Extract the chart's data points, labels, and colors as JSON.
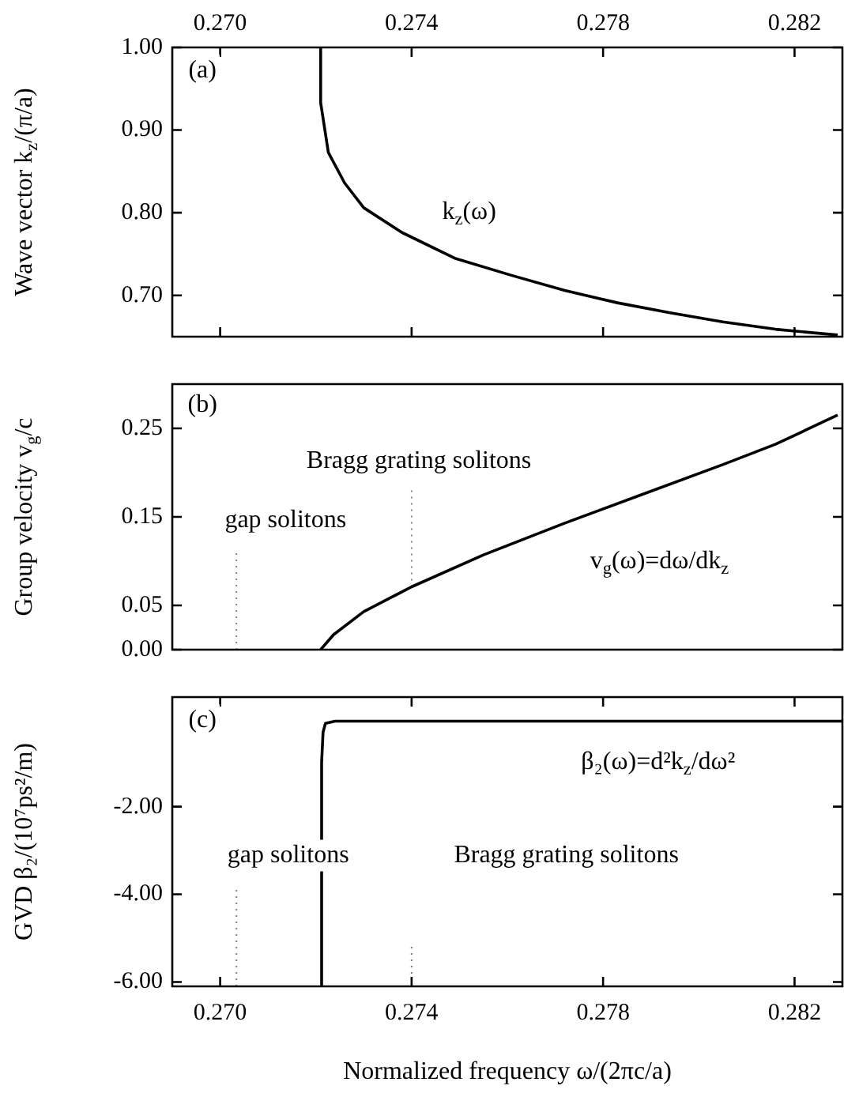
{
  "chart_data": [
    {
      "type": "line",
      "ylabel": "Wave vector k$_{z}$/(π/a)",
      "xlim": [
        0.269,
        0.283
      ],
      "x2lim": [
        0.269,
        0.283
      ],
      "x2ticks": [
        {
          "value": 0.27,
          "label": "0.270"
        },
        {
          "value": 0.274,
          "label": "0.274"
        },
        {
          "value": 0.278,
          "label": "0.278"
        },
        {
          "value": 0.282,
          "label": "0.282"
        }
      ],
      "ylim": [
        0.65,
        1.0
      ],
      "yticks": [
        {
          "value": 0.7,
          "label": "0.70"
        },
        {
          "value": 0.8,
          "label": "0.80"
        },
        {
          "value": 0.9,
          "label": "0.90"
        },
        {
          "value": 1.0,
          "label": "1.00"
        }
      ],
      "tick_labels": "y",
      "grid": false,
      "legend": false,
      "marker": "none",
      "annotations": [
        "(a)",
        "k$_{z}$(ω)"
      ],
      "series": [
        {
          "color": "#000000",
          "line_style": "solid",
          "x": [
            0.2721,
            0.2721,
            0.27226,
            0.2726,
            0.273,
            0.2738,
            0.2749,
            0.2761,
            0.2772,
            0.2783,
            0.2794,
            0.2805,
            0.2816,
            0.2829
          ],
          "values": [
            1.0,
            0.933,
            0.873,
            0.836,
            0.806,
            0.776,
            0.745,
            0.724,
            0.706,
            0.691,
            0.679,
            0.668,
            0.659,
            0.652
          ]
        }
      ]
    },
    {
      "type": "line",
      "ylabel": "Group velocity v$_{g}$/c",
      "xlim": [
        0.269,
        0.283
      ],
      "ylim": [
        0,
        0.3
      ],
      "yticks": [
        {
          "value": 0,
          "label": "0.00"
        },
        {
          "value": 0.05,
          "label": "0.05"
        },
        {
          "value": 0.15,
          "label": "0.15"
        },
        {
          "value": 0.25,
          "label": "0.25"
        }
      ],
      "tick_labels": "y",
      "grid": false,
      "legend": false,
      "marker": "none",
      "annotations": [
        "(b)",
        "gap solitons",
        "Bragg grating solitons",
        "v$_{g}$(ω)=dω/dk$_{z}$"
      ],
      "series": [
        {
          "color": "#000000",
          "line_style": "solid",
          "x": [
            0.2721,
            0.27237,
            0.273,
            0.274,
            0.2755,
            0.2772,
            0.2788,
            0.2805,
            0.2816,
            0.2829
          ],
          "values": [
            0,
            0.017,
            0.043,
            0.071,
            0.107,
            0.143,
            0.175,
            0.209,
            0.232,
            0.265
          ]
        },
        {
          "color": "#808080",
          "line_style": "dotted",
          "x": [
            0.27034,
            0.27034
          ],
          "values": [
            0,
            0.114
          ]
        },
        {
          "color": "#808080",
          "line_style": "dotted",
          "x": [
            0.274,
            0.274
          ],
          "values": [
            0.071,
            0.183
          ]
        }
      ]
    },
    {
      "type": "line",
      "ylabel": "GVD β₂/(10⁷ps²/m)",
      "xlabel": "Normalized frequency ω/(2πc/a)",
      "xlim": [
        0.269,
        0.283
      ],
      "xticks": [
        {
          "value": 0.27,
          "label": "0.270"
        },
        {
          "value": 0.274,
          "label": "0.274"
        },
        {
          "value": 0.278,
          "label": "0.278"
        },
        {
          "value": 0.282,
          "label": "0.282"
        }
      ],
      "ylim": [
        -6.1,
        0.5
      ],
      "yticks": [
        {
          "value": -6,
          "label": "-6.00"
        },
        {
          "value": -4,
          "label": "-4.00"
        },
        {
          "value": -2,
          "label": "-2.00"
        }
      ],
      "grid": false,
      "legend": false,
      "marker": "none",
      "annotations": [
        "(c)",
        "β₂(ω)=d²k$_{z}$/dω²",
        "gap solitons",
        "Bragg grating solitons"
      ],
      "series": [
        {
          "color": "#000000",
          "line_style": "solid",
          "x": [
            0.27212,
            0.27212,
            0.27215,
            0.2722,
            0.2724,
            0.283
          ],
          "values": [
            -6.1,
            -1.0,
            -0.3,
            -0.1,
            -0.05,
            -0.05
          ]
        },
        {
          "color": "#808080",
          "line_style": "dotted",
          "x": [
            0.27034,
            0.27034
          ],
          "values": [
            -6.1,
            -3.8
          ]
        },
        {
          "color": "#808080",
          "line_style": "dotted",
          "x": [
            0.274,
            0.274
          ],
          "values": [
            -6.1,
            -5.17
          ]
        }
      ]
    }
  ]
}
